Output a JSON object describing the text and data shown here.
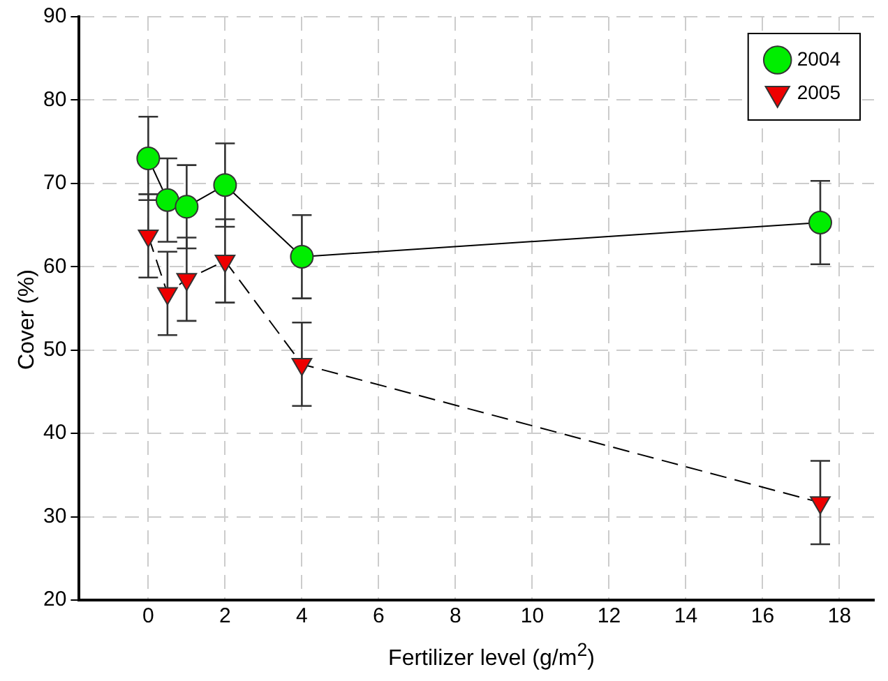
{
  "chart_data": {
    "type": "line",
    "xlabel": "Fertilizer level (g/m$^{2}$)",
    "ylabel": "Cover (%)",
    "xlim": [
      -1.8,
      18.9
    ],
    "xticks": [
      0,
      2,
      4,
      6,
      8,
      10,
      12,
      14,
      16,
      18
    ],
    "ylim": [
      20,
      90
    ],
    "yticks": [
      20,
      30,
      40,
      50,
      60,
      70,
      80,
      90
    ],
    "grid": true,
    "legend": "top right",
    "series": [
      {
        "name": "2004",
        "color": "#00ee00",
        "marker": "circle",
        "line_style": "solid",
        "x": [
          0,
          0.5,
          1,
          2,
          4,
          17.5
        ],
        "values": [
          73,
          68,
          67.2,
          69.8,
          61.2,
          65.3
        ],
        "errors": [
          5,
          5,
          5,
          5,
          5,
          5
        ]
      },
      {
        "name": "2005",
        "color": "#ee0000",
        "marker": "triangle",
        "line_style": "dashed",
        "x": [
          0,
          0.5,
          1,
          2,
          4,
          17.5
        ],
        "values": [
          63.7,
          56.8,
          58.5,
          60.7,
          48.3,
          31.7
        ],
        "errors": [
          5,
          5,
          5,
          5,
          5,
          5
        ]
      }
    ]
  }
}
